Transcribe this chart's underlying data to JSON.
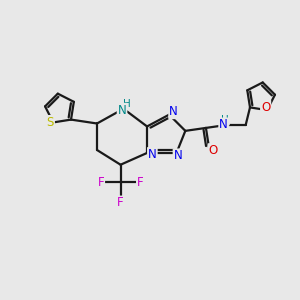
{
  "bg_color": "#e8e8e8",
  "bond_color": "#1a1a1a",
  "bond_width": 1.6,
  "atom_colors": {
    "N": "#0000ee",
    "S": "#bbbb00",
    "O": "#dd0000",
    "F": "#cc00cc",
    "NH": "#008888",
    "H": "#008888"
  },
  "font_size": 8.5,
  "font_size_H": 7.5
}
